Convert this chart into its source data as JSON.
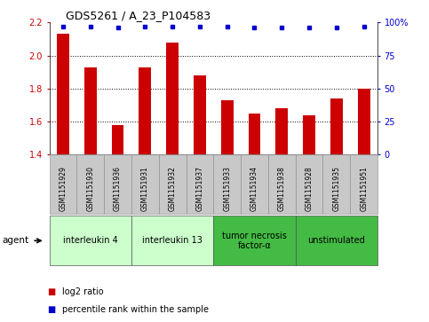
{
  "title": "GDS5261 / A_23_P104583",
  "samples": [
    "GSM1151929",
    "GSM1151930",
    "GSM1151936",
    "GSM1151931",
    "GSM1151932",
    "GSM1151937",
    "GSM1151933",
    "GSM1151934",
    "GSM1151938",
    "GSM1151928",
    "GSM1151935",
    "GSM1151951"
  ],
  "log2_values": [
    2.13,
    1.93,
    1.58,
    1.93,
    2.08,
    1.88,
    1.73,
    1.65,
    1.68,
    1.64,
    1.74,
    1.8
  ],
  "percentile_values": [
    97,
    97,
    96,
    97,
    97,
    97,
    97,
    96,
    96,
    96,
    96,
    97
  ],
  "ylim": [
    1.4,
    2.2
  ],
  "yticks": [
    1.4,
    1.6,
    1.8,
    2.0,
    2.2
  ],
  "right_yticks": [
    0,
    25,
    50,
    75,
    100
  ],
  "right_ylim": [
    0,
    100
  ],
  "bar_color": "#cc0000",
  "dot_color": "#0000cc",
  "groups": [
    {
      "label": "interleukin 4",
      "start": 0,
      "end": 3,
      "color": "#ccffcc"
    },
    {
      "label": "interleukin 13",
      "start": 3,
      "end": 6,
      "color": "#ccffcc"
    },
    {
      "label": "tumor necrosis\nfactor-α",
      "start": 6,
      "end": 9,
      "color": "#44bb44"
    },
    {
      "label": "unstimulated",
      "start": 9,
      "end": 12,
      "color": "#44bb44"
    }
  ],
  "agent_label": "agent",
  "legend_items": [
    {
      "color": "#cc0000",
      "label": "log2 ratio"
    },
    {
      "color": "#0000cc",
      "label": "percentile rank within the sample"
    }
  ],
  "sample_box_color": "#c8c8c8",
  "sample_box_edge": "#888888",
  "fig_bg": "#ffffff"
}
